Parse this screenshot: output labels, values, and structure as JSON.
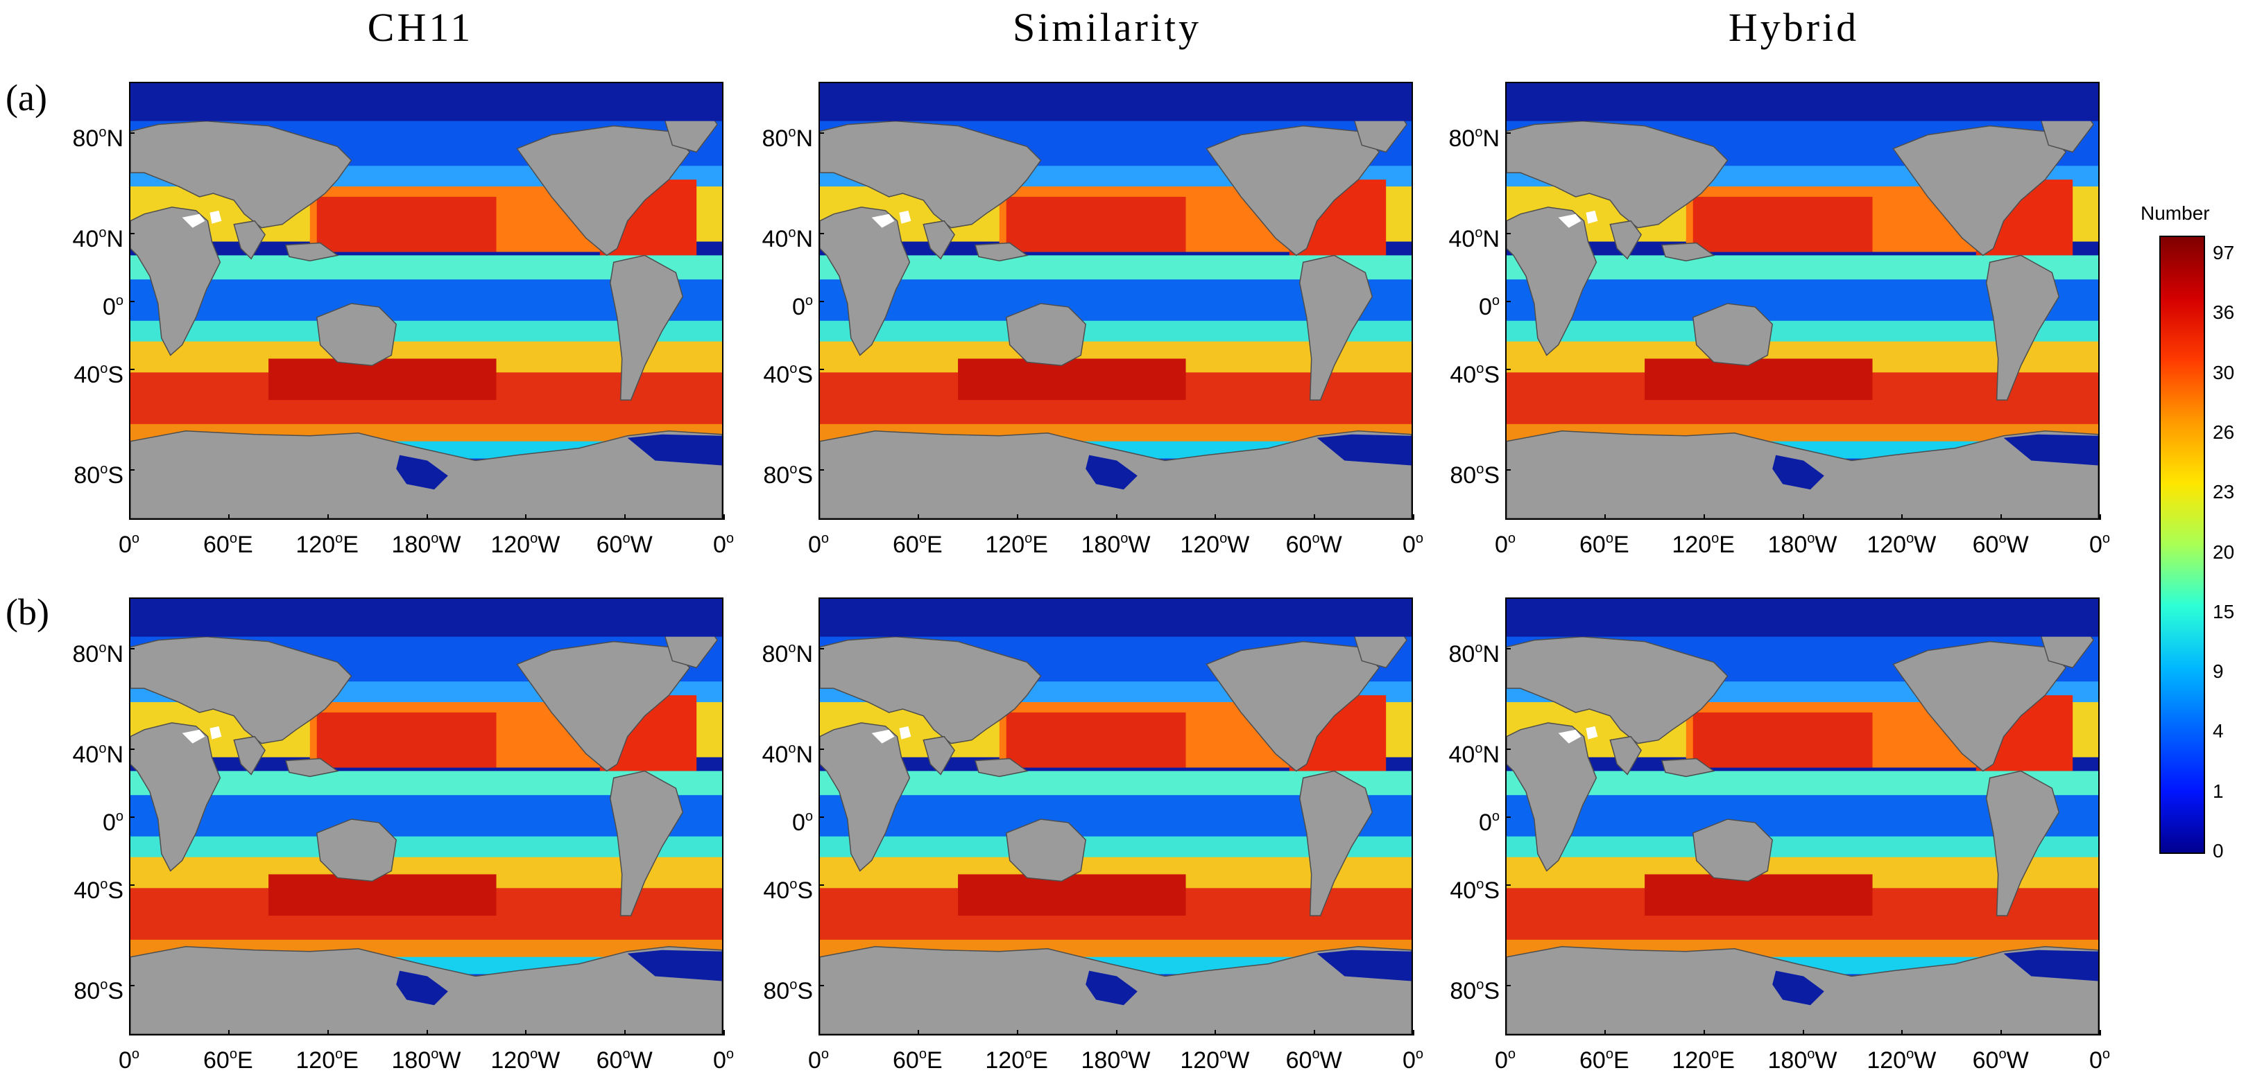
{
  "column_titles": [
    "CH11",
    "Similarity",
    "Hybrid"
  ],
  "row_labels": [
    "(a)",
    "(b)"
  ],
  "lat_labels": [
    {
      "v": "80",
      "h": "N"
    },
    {
      "v": "40",
      "h": "N"
    },
    {
      "v": "0",
      "h": ""
    },
    {
      "v": "40",
      "h": "S"
    },
    {
      "v": "80",
      "h": "S"
    }
  ],
  "lon_labels": [
    {
      "v": "0",
      "h": ""
    },
    {
      "v": "60",
      "h": "E"
    },
    {
      "v": "120",
      "h": "E"
    },
    {
      "v": "180",
      "h": "W"
    },
    {
      "v": "120",
      "h": "W"
    },
    {
      "v": "60",
      "h": "W"
    },
    {
      "v": "0",
      "h": ""
    }
  ],
  "colorbar": {
    "title": "Number",
    "ticks": [
      "97",
      "36",
      "30",
      "26",
      "23",
      "20",
      "15",
      "9",
      "4",
      "1",
      "0"
    ],
    "colors": [
      "#7f0000",
      "#d40000",
      "#ff3b00",
      "#ff9a00",
      "#ffe600",
      "#a8ff55",
      "#2dffd6",
      "#00b8ff",
      "#0064ff",
      "#0015ff",
      "#00008f"
    ]
  },
  "map": {
    "land_color": "#9b9b9b",
    "lakes_color": "#ffffff",
    "ocean_low_color": "#0b1ea3"
  }
}
